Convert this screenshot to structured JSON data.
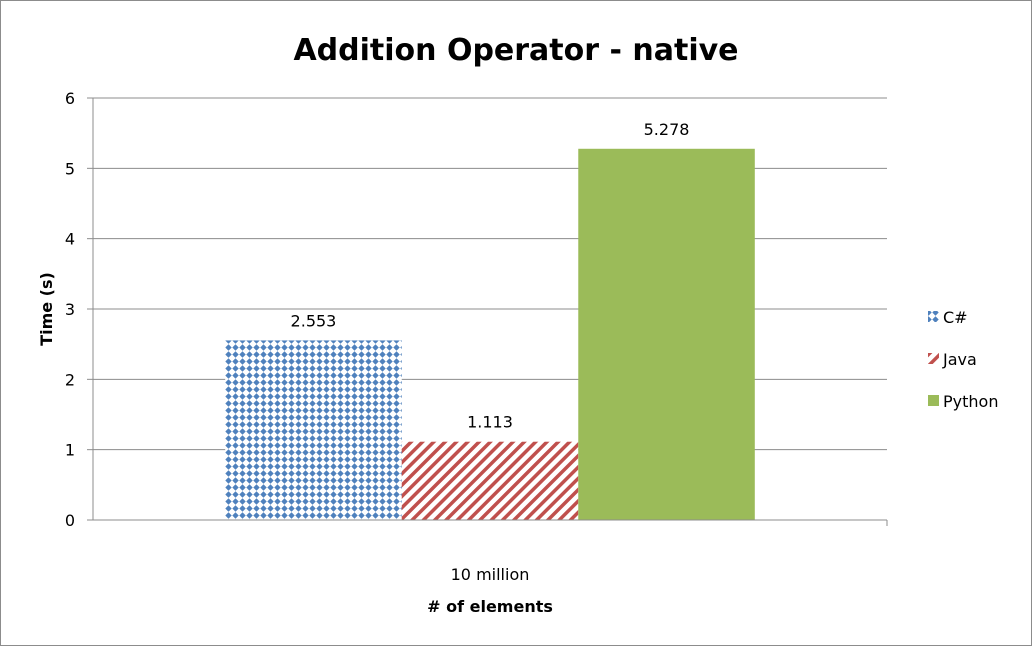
{
  "chart_data": {
    "type": "bar",
    "title": "Addition Operator - native",
    "xlabel": "# of elements",
    "ylabel": "Time (s)",
    "categories": [
      "10 million"
    ],
    "ylim": [
      0,
      6
    ],
    "yticks": [
      "0",
      "1",
      "2",
      "3",
      "4",
      "5",
      "6"
    ],
    "grid": true,
    "legend_position": "right",
    "series": [
      {
        "name": "C#",
        "values": [
          2.553
        ],
        "labels": [
          "2.553"
        ],
        "color": "#4f81bd",
        "pattern": "diamond-dots"
      },
      {
        "name": "Java",
        "values": [
          1.113
        ],
        "labels": [
          "1.113"
        ],
        "color": "#c0504d",
        "pattern": "diagonal-stripes"
      },
      {
        "name": "Python",
        "values": [
          5.278
        ],
        "labels": [
          "5.278"
        ],
        "color": "#9bbb59",
        "pattern": "solid"
      }
    ]
  }
}
